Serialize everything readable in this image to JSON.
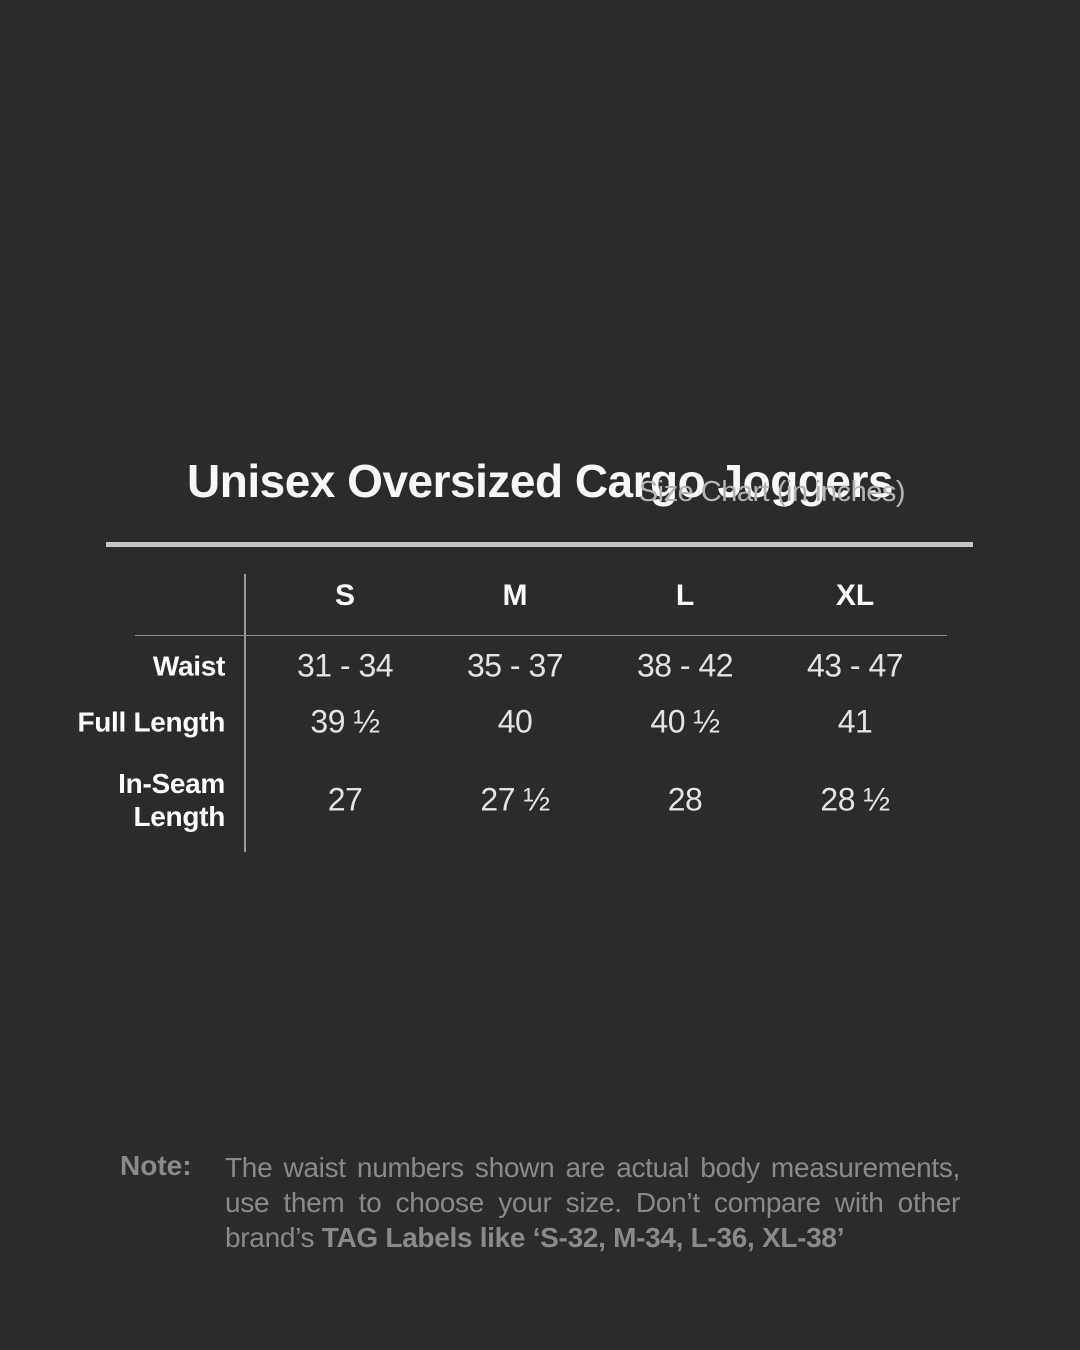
{
  "title": "Unisex Oversized Cargo Joggers",
  "subtitle": "Size Chart (in inches)",
  "table": {
    "sizes": [
      "S",
      "M",
      "L",
      "XL"
    ],
    "rows": [
      {
        "label": "Waist",
        "label_lines": [
          "Waist"
        ],
        "values": [
          "31 - 34",
          "35 - 37",
          "38 - 42",
          "43 - 47"
        ]
      },
      {
        "label": "Full Length",
        "label_lines": [
          "Full Length"
        ],
        "values": [
          "39 ½",
          "40",
          "40 ½",
          "41"
        ]
      },
      {
        "label": "In-Seam Length",
        "label_lines": [
          "In-Seam",
          "Length"
        ],
        "values": [
          "27",
          "27 ½",
          "28",
          "28 ½"
        ]
      }
    ]
  },
  "note": {
    "label": "Note:",
    "body_regular": "The waist numbers shown are actual body measurements, use them to choose your size. Don’t compare with other brand’s ",
    "body_bold": "TAG Labels like ‘S-32, M-34, L-36, XL-38’"
  },
  "colors": {
    "background": "#2b2b2b",
    "title_text": "#f7f7f7",
    "subtitle_text": "#b4b4b4",
    "rule_thick": "#c5c5c5",
    "rule_thin": "#9b9b9b",
    "header_text": "#fcfcfc",
    "value_text": "#e3e3e3",
    "note_text": "#8a8a8a"
  }
}
